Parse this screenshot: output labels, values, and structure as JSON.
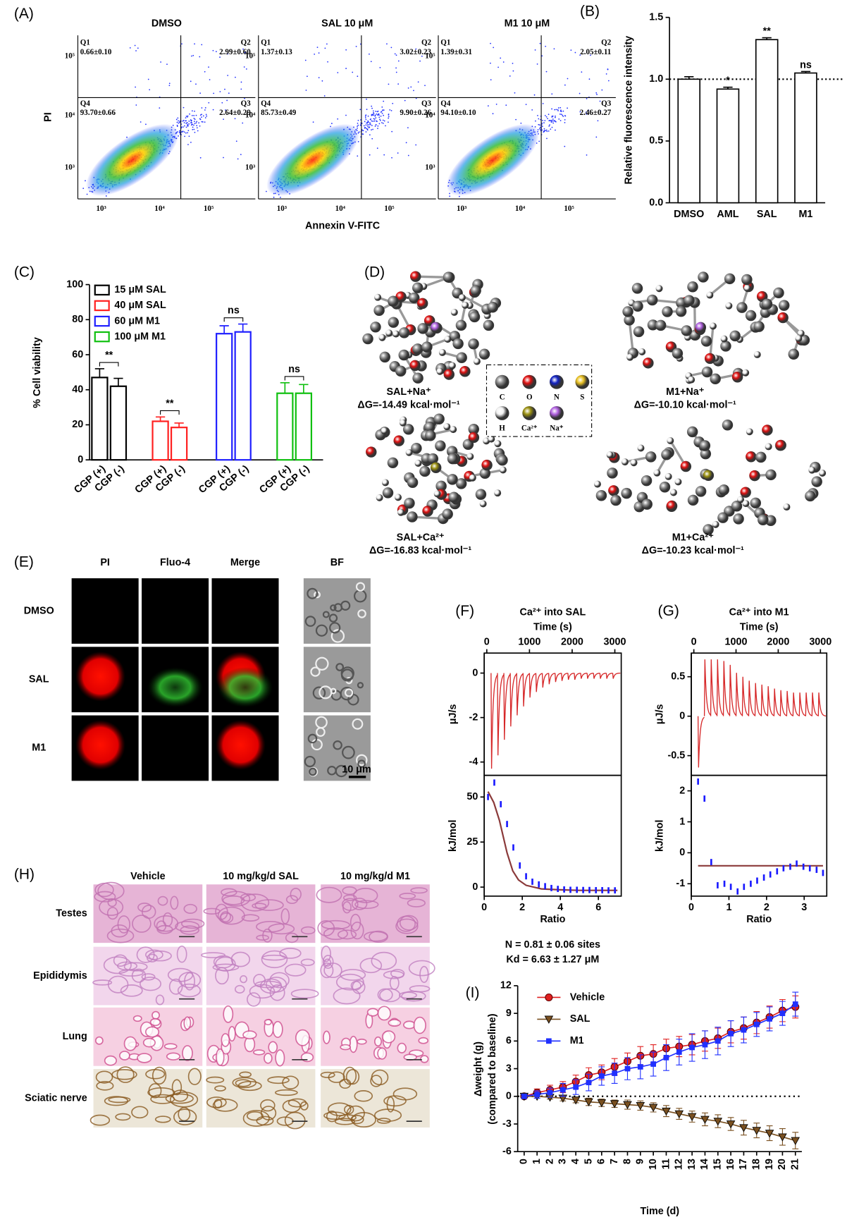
{
  "panel_labels": [
    "(A)",
    "(B)",
    "(C)",
    "(D)",
    "(E)",
    "(F)",
    "(G)",
    "(H)",
    "(I)"
  ],
  "flow": {
    "x_label": "Annexin V-FITC",
    "y_label": "PI",
    "ticks": [
      "10³",
      "10⁴",
      "10⁵"
    ],
    "plots": [
      {
        "title": "DMSO",
        "quadrants": [
          [
            "Q1",
            "0.66±0.10"
          ],
          [
            "Q2",
            "2.99±0.60"
          ],
          [
            "Q3",
            "2.64±0.29"
          ],
          [
            "Q4",
            "93.70±0.66"
          ]
        ]
      },
      {
        "title": "SAL 10 μM",
        "quadrants": [
          [
            "Q1",
            "1.37±0.13"
          ],
          [
            "Q2",
            "3.02±0.23"
          ],
          [
            "Q3",
            "9.90±0.26"
          ],
          [
            "Q4",
            "85.73±0.49"
          ]
        ]
      },
      {
        "title": "M1 10 μM",
        "quadrants": [
          [
            "Q1",
            "1.39±0.31"
          ],
          [
            "Q2",
            "2.05±0.11"
          ],
          [
            "Q3",
            "2.46±0.27"
          ],
          [
            "Q4",
            "94.10±0.10"
          ]
        ]
      }
    ]
  },
  "molecules": {
    "complexes": [
      {
        "name": "SAL+Na⁺",
        "dg": "ΔG=-14.49 kcal·mol⁻¹"
      },
      {
        "name": "M1+Na⁺",
        "dg": "ΔG=-10.10 kcal·mol⁻¹"
      },
      {
        "name": "SAL+Ca²⁺",
        "dg": "ΔG=-16.83 kcal·mol⁻¹"
      },
      {
        "name": "M1+Ca²⁺",
        "dg": "ΔG=-10.23 kcal·mol⁻¹"
      }
    ],
    "legend": [
      {
        "label": "C",
        "color": "#8a8a8a"
      },
      {
        "label": "O",
        "color": "#e01010"
      },
      {
        "label": "N",
        "color": "#1020c0"
      },
      {
        "label": "S",
        "color": "#e8c020"
      },
      {
        "label": "H",
        "color": "#f2f2f2"
      },
      {
        "label": "Ca²⁺",
        "color": "#9a9010"
      },
      {
        "label": "Na⁺",
        "color": "#b060e0"
      }
    ]
  },
  "imaging": {
    "columns": [
      "PI",
      "Fluo-4",
      "Merge",
      "BF"
    ],
    "rows": [
      "DMSO",
      "SAL",
      "M1"
    ],
    "scale_bar": "10 μm"
  },
  "histology": {
    "columns": [
      "Vehicle",
      "10 mg/kg/d SAL",
      "10 mg/kg/d M1"
    ],
    "rows": [
      "Testes",
      "Epididymis",
      "Lung",
      "Sciatic nerve"
    ]
  },
  "chart_data": [
    {
      "type": "bar",
      "y_label": "Relative fluorescence intensity",
      "categories": [
        "DMSO",
        "AML",
        "SAL",
        "M1"
      ],
      "values": [
        1.0,
        0.92,
        1.32,
        1.05
      ],
      "errors": [
        0.02,
        0.015,
        0.015,
        0.012
      ],
      "significance": [
        null,
        "*",
        "**",
        "ns"
      ],
      "color": "#000000",
      "ylim": [
        0,
        1.5
      ],
      "yticks": [
        {
          "value": 0,
          "label": "0.0"
        },
        0.5,
        {
          "value": 1,
          "label": "1.0"
        },
        1.5
      ],
      "reference_line": 1
    },
    {
      "type": "grouped_bar",
      "y_label": "% Cell viability",
      "categories": [
        "CGP (+)",
        "CGP (-)"
      ],
      "series": [
        {
          "name": "15 μM SAL",
          "color": "#000000",
          "values": [
            47,
            42
          ],
          "errors": [
            5,
            4.5
          ],
          "significance": "**"
        },
        {
          "name": "40 μM SAL",
          "color": "#ff2020",
          "values": [
            22,
            18.5
          ],
          "errors": [
            2.5,
            2.5
          ],
          "significance": "**"
        },
        {
          "name": "60 μM M1",
          "color": "#2020ff",
          "values": [
            72,
            73
          ],
          "errors": [
            4.5,
            4.5
          ],
          "significance": "ns"
        },
        {
          "name": "100 μM M1",
          "color": "#10c010",
          "values": [
            38,
            38
          ],
          "errors": [
            6,
            5
          ],
          "significance": "ns"
        }
      ],
      "ylim": [
        0,
        100
      ],
      "yticks": [
        0,
        20,
        40,
        60,
        80,
        100
      ]
    },
    {
      "type": "thermogram",
      "title": "Ca²⁺ into SAL",
      "x_label": "Time (s)",
      "y_label": "μJ/s",
      "xlim": [
        -60,
        3150
      ],
      "xticks": [
        0,
        1000,
        2000,
        3000
      ],
      "ylim": [
        -4.6,
        0.9
      ],
      "yticks": [
        -4,
        -2,
        0
      ],
      "color": "#d62728",
      "injection_times": [
        100,
        250,
        400,
        550,
        700,
        850,
        1000,
        1150,
        1300,
        1450,
        1600,
        1750,
        1900,
        2050,
        2200,
        2350,
        2500,
        2650,
        2800,
        2950
      ],
      "peaks": [
        -4.3,
        -3.7,
        -3.0,
        -2.4,
        -1.9,
        -1.5,
        -1.1,
        -0.85,
        -0.65,
        -0.5,
        -0.4,
        -0.35,
        -0.3,
        -0.3,
        -0.25,
        -0.25,
        -0.25,
        -0.25,
        -0.25,
        -0.25
      ]
    },
    {
      "type": "itc_fit",
      "x_label": "Ratio",
      "y_label": "kJ/mol",
      "xlim": [
        0,
        7.2
      ],
      "xticks": [
        0,
        2,
        4,
        6
      ],
      "ylim": [
        -5,
        62
      ],
      "yticks": [
        0,
        25,
        50
      ],
      "color": "#1a1aff",
      "fit_color": "#8b3a3a",
      "x": [
        0.2,
        0.53,
        0.87,
        1.2,
        1.53,
        1.87,
        2.2,
        2.53,
        2.87,
        3.2,
        3.53,
        3.87,
        4.2,
        4.53,
        4.87,
        5.2,
        5.53,
        5.87,
        6.2,
        6.53,
        6.87
      ],
      "values": [
        50,
        58,
        46,
        35,
        22,
        12,
        6,
        3,
        1.5,
        0.5,
        -0.5,
        -1,
        -1.3,
        -1.5,
        -1.5,
        -1.6,
        -1.6,
        -1.7,
        -1.7,
        -1.8,
        -1.8
      ],
      "fit_x": [
        0.2,
        0.5,
        0.8,
        1.0,
        1.2,
        1.5,
        1.8,
        2.2,
        3,
        4,
        5,
        6,
        7
      ],
      "fit_y": [
        53,
        47,
        37,
        28,
        19,
        9,
        4,
        1,
        -1,
        -1.5,
        -1.8,
        -1.8,
        -1.8
      ],
      "annotations": [
        "N = 0.81 ± 0.06 sites",
        "Kd = 6.63 ± 1.27 μM"
      ]
    },
    {
      "type": "thermogram",
      "title": "Ca²⁺ into M1",
      "x_label": "Time (s)",
      "y_label": "μJ/s",
      "xlim": [
        -60,
        3150
      ],
      "xticks": [
        0,
        1000,
        2000,
        3000
      ],
      "ylim": [
        -0.75,
        0.8
      ],
      "yticks": [
        -0.5,
        0,
        0.5
      ],
      "color": "#d62728",
      "injection_times": [
        100,
        250,
        400,
        550,
        700,
        850,
        1000,
        1150,
        1300,
        1450,
        1600,
        1750,
        1900,
        2050,
        2200,
        2350,
        2500,
        2650,
        2800,
        2950
      ],
      "peaks": [
        -0.65,
        0.72,
        0.72,
        0.72,
        0.7,
        0.65,
        0.55,
        0.5,
        0.45,
        0.42,
        0.4,
        0.38,
        0.35,
        0.33,
        0.32,
        0.3,
        0.3,
        0.3,
        0.3,
        0.3
      ]
    },
    {
      "type": "itc_fit",
      "x_label": "Ratio",
      "y_label": "kJ/mol",
      "xlim": [
        0,
        3.6
      ],
      "xticks": [
        0,
        1,
        2,
        3
      ],
      "ylim": [
        -1.4,
        2.5
      ],
      "yticks": [
        -1,
        0,
        1,
        2
      ],
      "color": "#1a1aff",
      "fit_color": "#8b3a3a",
      "x": [
        0.18,
        0.35,
        0.53,
        0.7,
        0.88,
        1.05,
        1.23,
        1.4,
        1.58,
        1.75,
        1.93,
        2.1,
        2.28,
        2.45,
        2.63,
        2.8,
        2.98,
        3.15,
        3.33,
        3.5
      ],
      "values": [
        2.3,
        1.75,
        -0.3,
        -1.05,
        -1.0,
        -1.1,
        -1.25,
        -1.1,
        -1.0,
        -0.9,
        -0.8,
        -0.7,
        -0.6,
        -0.5,
        -0.45,
        -0.35,
        -0.45,
        -0.5,
        -0.55,
        -0.65
      ],
      "fit_x": [
        0.18,
        3.5
      ],
      "fit_y": [
        -0.42,
        -0.42
      ]
    },
    {
      "type": "line",
      "x_label": "Time (d)",
      "y_label": [
        "Δweight (g)",
        "(compared to baseline)"
      ],
      "x": [
        0,
        1,
        2,
        3,
        4,
        5,
        6,
        7,
        8,
        9,
        10,
        11,
        12,
        13,
        14,
        15,
        16,
        17,
        18,
        19,
        20,
        21
      ],
      "series": [
        {
          "name": "Vehicle",
          "color": "#e02020",
          "marker": "circle",
          "values": [
            0,
            0.4,
            0.7,
            1.0,
            1.6,
            2.3,
            2.6,
            3.2,
            3.8,
            4.4,
            4.6,
            5.2,
            5.4,
            5.6,
            6.0,
            6.3,
            7.0,
            7.4,
            8.0,
            8.6,
            9.3,
            9.7
          ],
          "errors": [
            0.2,
            0.4,
            0.5,
            0.6,
            0.7,
            0.8,
            0.8,
            0.9,
            0.9,
            1.0,
            1.0,
            1.0,
            1.1,
            1.1,
            1.1,
            1.1,
            1.2,
            1.2,
            1.2,
            1.2,
            1.2,
            1.2
          ]
        },
        {
          "name": "SAL",
          "color": "#7a5020",
          "marker": "triangle",
          "values": [
            0,
            0,
            -0.1,
            -0.2,
            -0.4,
            -0.6,
            -0.7,
            -0.8,
            -0.9,
            -1.0,
            -1.2,
            -1.6,
            -1.9,
            -2.2,
            -2.5,
            -2.7,
            -3.0,
            -3.4,
            -3.7,
            -4.0,
            -4.4,
            -4.8
          ],
          "errors": [
            0.1,
            0.2,
            0.2,
            0.3,
            0.3,
            0.4,
            0.4,
            0.4,
            0.5,
            0.5,
            0.5,
            0.6,
            0.6,
            0.6,
            0.7,
            0.7,
            0.7,
            0.8,
            0.8,
            0.8,
            0.9,
            0.9
          ]
        },
        {
          "name": "M1",
          "color": "#2030ff",
          "marker": "square",
          "values": [
            0,
            0.2,
            0.4,
            0.7,
            1.0,
            1.5,
            2.2,
            2.5,
            3.0,
            3.2,
            3.5,
            4.2,
            4.8,
            5.3,
            5.6,
            6.0,
            6.8,
            7.2,
            7.8,
            8.4,
            9.0,
            10.0
          ],
          "errors": [
            0.2,
            0.4,
            0.5,
            0.7,
            0.8,
            0.9,
            1.0,
            1.1,
            1.2,
            1.3,
            1.3,
            1.4,
            1.4,
            1.5,
            1.5,
            1.5,
            1.4,
            1.4,
            1.3,
            1.3,
            1.3,
            1.3
          ]
        }
      ],
      "xlim": [
        -0.5,
        21.5
      ],
      "xticks": [
        0,
        1,
        2,
        3,
        4,
        5,
        6,
        7,
        8,
        9,
        10,
        11,
        12,
        13,
        14,
        15,
        16,
        17,
        18,
        19,
        20,
        21
      ],
      "ylim": [
        -6,
        12
      ],
      "yticks": [
        -6,
        -3,
        0,
        3,
        6,
        9,
        12
      ],
      "reference_line": 0
    }
  ]
}
